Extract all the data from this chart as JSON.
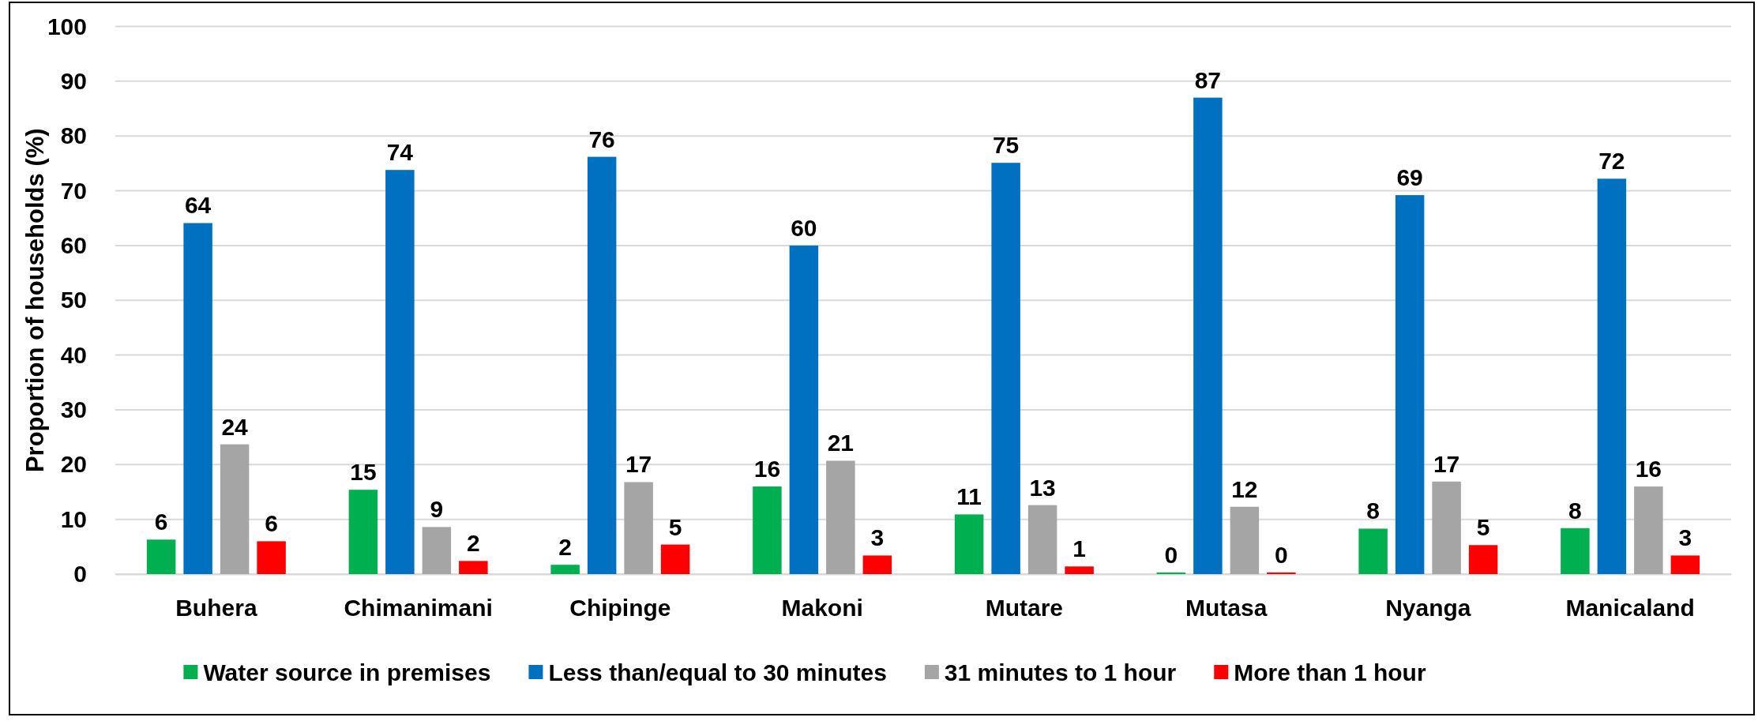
{
  "chart_data": {
    "type": "bar",
    "ylabel": "Proportion of households (%)",
    "categories": [
      "Buhera",
      "Chimanimani",
      "Chipinge",
      "Makoni",
      "Mutare",
      "Mutasa",
      "Nyanga",
      "Manicaland"
    ],
    "series": [
      {
        "name": "Water source in premises",
        "color": "#00b050",
        "values": [
          6.3,
          15.4,
          1.7,
          16.0,
          10.9,
          0.3,
          8.3,
          8.4
        ],
        "value_labels": [
          "6",
          "15",
          "2",
          "16",
          "11",
          "0",
          "8",
          "8"
        ]
      },
      {
        "name": "Less than/equal to 30 minutes",
        "color": "#0070c0",
        "values": [
          64.1,
          73.8,
          76.2,
          60.0,
          75.1,
          87.0,
          69.2,
          72.2
        ],
        "value_labels": [
          "64",
          "74",
          "76",
          "60",
          "75",
          "87",
          "69",
          "72"
        ]
      },
      {
        "name": "31 minutes to 1 hour",
        "color": "#a5a5a5",
        "values": [
          23.7,
          8.6,
          16.8,
          20.7,
          12.6,
          12.3,
          16.9,
          16.0
        ],
        "value_labels": [
          "24",
          "9",
          "17",
          "21",
          "13",
          "12",
          "17",
          "16"
        ]
      },
      {
        "name": "More than 1 hour",
        "color": "#ff0000",
        "values": [
          6.0,
          2.4,
          5.4,
          3.4,
          1.4,
          0.3,
          5.3,
          3.4
        ],
        "value_labels": [
          "6",
          "2",
          "5",
          "3",
          "1",
          "0",
          "5",
          "3"
        ]
      }
    ],
    "ylim": [
      0,
      100
    ],
    "yticks": [
      0,
      10,
      20,
      30,
      40,
      50,
      60,
      70,
      80,
      90,
      100
    ],
    "grid": "y",
    "legend": "bottom"
  }
}
